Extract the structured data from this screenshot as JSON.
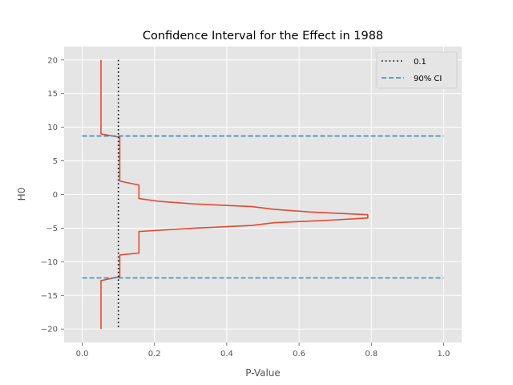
{
  "chart_data": {
    "type": "line",
    "title": "Confidence Interval for the Effect in 1988",
    "xlabel": "P-Value",
    "ylabel": "H0",
    "xlim": [
      -0.05,
      1.05
    ],
    "ylim": [
      -22,
      22
    ],
    "xticks": [
      0.0,
      0.2,
      0.4,
      0.6,
      0.8,
      1.0
    ],
    "xtick_labels": [
      "0.0",
      "0.2",
      "0.4",
      "0.6",
      "0.8",
      "1.0"
    ],
    "yticks": [
      -20,
      -15,
      -10,
      -5,
      0,
      5,
      10,
      15,
      20
    ],
    "ytick_labels": [
      "−20",
      "−15",
      "−10",
      "−5",
      "0",
      "5",
      "10",
      "15",
      "20"
    ],
    "grid": true,
    "legend_position": "top-right",
    "series": [
      {
        "kind": "pvalue-curve",
        "color": "#E24A33",
        "points": [
          [
            0.052,
            20
          ],
          [
            0.052,
            9.0
          ],
          [
            0.095,
            8.6
          ],
          [
            0.104,
            8.5
          ],
          [
            0.104,
            2.0
          ],
          [
            0.157,
            1.4
          ],
          [
            0.157,
            -0.6
          ],
          [
            0.21,
            -1.0
          ],
          [
            0.31,
            -1.4
          ],
          [
            0.47,
            -1.8
          ],
          [
            0.53,
            -2.2
          ],
          [
            0.63,
            -2.6
          ],
          [
            0.79,
            -3.0
          ],
          [
            0.79,
            -3.5
          ],
          [
            0.69,
            -3.8
          ],
          [
            0.53,
            -4.2
          ],
          [
            0.47,
            -4.6
          ],
          [
            0.31,
            -5.0
          ],
          [
            0.157,
            -5.5
          ],
          [
            0.157,
            -8.7
          ],
          [
            0.104,
            -9.0
          ],
          [
            0.104,
            -12.2
          ],
          [
            0.052,
            -12.8
          ],
          [
            0.052,
            -20
          ]
        ]
      },
      {
        "name": "0.1",
        "kind": "vline",
        "x": 0.1,
        "y_range": [
          -20,
          20
        ],
        "color": "#000000",
        "style": "dotted"
      },
      {
        "name": "90% CI",
        "kind": "hlines",
        "y": [
          8.7,
          -12.4
        ],
        "x_range": [
          0.0,
          1.0
        ],
        "color": "#348ABD",
        "style": "dashed"
      }
    ]
  }
}
